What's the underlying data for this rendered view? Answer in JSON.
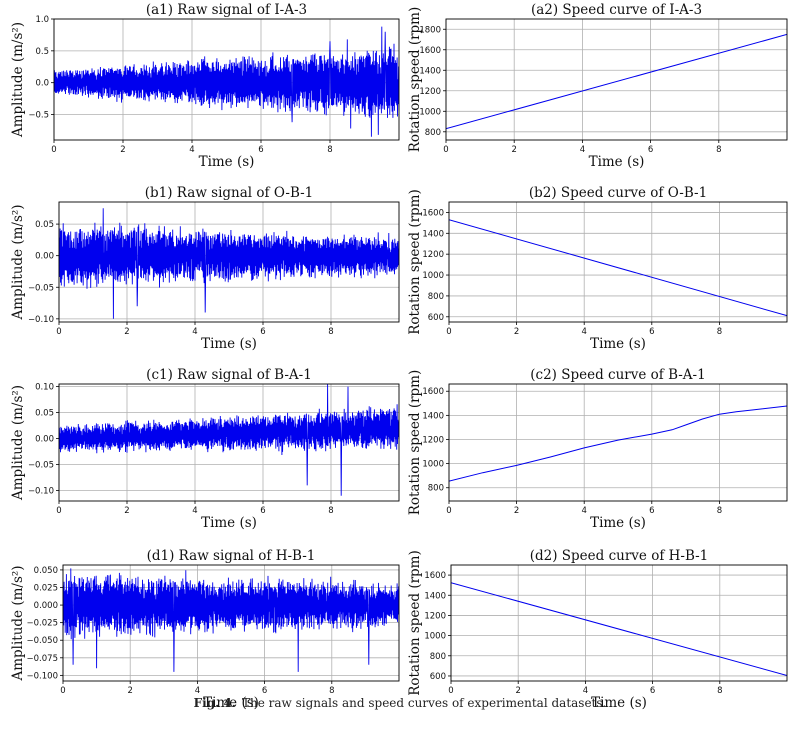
{
  "caption": {
    "label": "Fig. 4.",
    "text": "The raw signals and speed curves of experimental datasets."
  },
  "chart_data": [
    {
      "type": "line",
      "title": "(a1) Raw signal of I-A-3",
      "xlabel": "Time (s)",
      "ylabel": "Amplitude (m/s²)",
      "xlim": [
        0,
        10
      ],
      "ylim": [
        -0.9,
        1.0
      ],
      "xticks": [
        0,
        2,
        4,
        6,
        8
      ],
      "yticks": [
        -0.5,
        0.0,
        0.5,
        1.0
      ],
      "ytick_labels": [
        "−0.5",
        "0.0",
        "0.5",
        "1.0"
      ],
      "grid": true,
      "series": [
        {
          "color": "#0000ee",
          "signal": "noisy vibration, amplitude envelope growing with time",
          "envelope_start": 0.2,
          "envelope_end": 0.55,
          "peaks": [
            {
              "x": 6.9,
              "y": -0.62
            },
            {
              "x": 8.0,
              "y": 0.65
            },
            {
              "x": 8.5,
              "y": 0.68
            },
            {
              "x": 8.6,
              "y": -0.72
            },
            {
              "x": 9.2,
              "y": -0.85
            },
            {
              "x": 9.4,
              "y": -0.82
            },
            {
              "x": 9.5,
              "y": 0.88
            },
            {
              "x": 9.6,
              "y": 0.8
            }
          ]
        }
      ]
    },
    {
      "type": "line",
      "title": "(a2) Speed curve of I-A-3",
      "xlabel": "Time (s)",
      "ylabel": "Rotation speed (rpm)",
      "xlim": [
        0,
        10
      ],
      "ylim": [
        720,
        1900
      ],
      "xticks": [
        0,
        2,
        4,
        6,
        8
      ],
      "yticks": [
        800,
        1000,
        1200,
        1400,
        1600,
        1800
      ],
      "grid": true,
      "series": [
        {
          "color": "#0000ee",
          "x": [
            0,
            10
          ],
          "y": [
            830,
            1750
          ]
        }
      ]
    },
    {
      "type": "line",
      "title": "(b1) Raw signal of O-B-1",
      "xlabel": "Time (s)",
      "ylabel": "Amplitude (m/s²)",
      "xlim": [
        0,
        10
      ],
      "ylim": [
        -0.105,
        0.085
      ],
      "xticks": [
        0,
        2,
        4,
        6,
        8
      ],
      "yticks": [
        -0.1,
        -0.05,
        0.0,
        0.05
      ],
      "ytick_labels": [
        "−0.10",
        "−0.05",
        "0.00",
        "0.05"
      ],
      "grid": true,
      "series": [
        {
          "color": "#0000ee",
          "signal": "noisy vibration, amplitude envelope decaying with time",
          "envelope_start": 0.05,
          "envelope_end": 0.028,
          "peaks": [
            {
              "x": 1.3,
              "y": 0.075
            },
            {
              "x": 1.6,
              "y": -0.1
            },
            {
              "x": 2.3,
              "y": -0.08
            },
            {
              "x": 4.3,
              "y": -0.09
            }
          ]
        }
      ]
    },
    {
      "type": "line",
      "title": "(b2) Speed curve of O-B-1",
      "xlabel": "Time (s)",
      "ylabel": "Rotation speed (rpm)",
      "xlim": [
        0,
        10
      ],
      "ylim": [
        550,
        1700
      ],
      "xticks": [
        0,
        2,
        4,
        6,
        8
      ],
      "yticks": [
        600,
        800,
        1000,
        1200,
        1400,
        1600
      ],
      "grid": true,
      "series": [
        {
          "color": "#0000ee",
          "x": [
            0,
            10
          ],
          "y": [
            1530,
            610
          ]
        }
      ]
    },
    {
      "type": "line",
      "title": "(c1) Raw signal of B-A-1",
      "xlabel": "Time (s)",
      "ylabel": "Amplitude (m/s²)",
      "xlim": [
        0,
        10
      ],
      "ylim": [
        -0.12,
        0.105
      ],
      "xticks": [
        0,
        2,
        4,
        6,
        8
      ],
      "yticks": [
        -0.1,
        -0.05,
        0.0,
        0.05,
        0.1
      ],
      "ytick_labels": [
        "−0.10",
        "−0.05",
        "0.00",
        "0.05",
        "0.10"
      ],
      "grid": true,
      "series": [
        {
          "color": "#0000ee",
          "signal": "noisy vibration with slowly rising offset and growing envelope",
          "envelope_start": 0.025,
          "envelope_end": 0.04,
          "offset_start": 0.0,
          "offset_end": 0.02,
          "peaks": [
            {
              "x": 7.9,
              "y": 0.105
            },
            {
              "x": 7.3,
              "y": -0.09
            },
            {
              "x": 8.5,
              "y": 0.1
            },
            {
              "x": 8.3,
              "y": -0.11
            }
          ]
        }
      ]
    },
    {
      "type": "line",
      "title": "(c2) Speed curve of B-A-1",
      "xlabel": "Time (s)",
      "ylabel": "Rotation speed (rpm)",
      "xlim": [
        0,
        10
      ],
      "ylim": [
        690,
        1660
      ],
      "xticks": [
        0,
        2,
        4,
        6,
        8
      ],
      "yticks": [
        800,
        1000,
        1200,
        1400,
        1600
      ],
      "grid": true,
      "series": [
        {
          "color": "#0000ee",
          "x": [
            0,
            1,
            2,
            3,
            4,
            5,
            6,
            6.6,
            7,
            7.5,
            8,
            8.5,
            9,
            10
          ],
          "y": [
            855,
            925,
            985,
            1055,
            1130,
            1195,
            1245,
            1280,
            1320,
            1370,
            1410,
            1430,
            1445,
            1478
          ]
        }
      ]
    },
    {
      "type": "line",
      "title": "(d1) Raw signal of H-B-1",
      "xlabel": "Time (s)",
      "ylabel": "Amplitude (m/s²)",
      "xlim": [
        0,
        10
      ],
      "ylim": [
        -0.108,
        0.057
      ],
      "xticks": [
        0,
        2,
        4,
        6,
        8
      ],
      "yticks": [
        -0.1,
        -0.075,
        -0.05,
        -0.025,
        0.0,
        0.025,
        0.05
      ],
      "ytick_labels": [
        "−0.100",
        "−0.075",
        "−0.050",
        "−0.025",
        "0.000",
        "0.025",
        "0.050"
      ],
      "grid": true,
      "series": [
        {
          "color": "#0000ee",
          "signal": "noisy vibration, amplitude envelope slowly decaying",
          "envelope_start": 0.045,
          "envelope_end": 0.03,
          "peaks": [
            {
              "x": 0.3,
              "y": -0.085
            },
            {
              "x": 1.0,
              "y": -0.09
            },
            {
              "x": 3.3,
              "y": -0.095
            },
            {
              "x": 7.0,
              "y": -0.095
            },
            {
              "x": 9.1,
              "y": -0.085
            }
          ]
        }
      ]
    },
    {
      "type": "line",
      "title": "(d2) Speed curve of H-B-1",
      "xlabel": "Time (s)",
      "ylabel": "Rotation speed (rpm)",
      "xlim": [
        0,
        10
      ],
      "ylim": [
        550,
        1700
      ],
      "xticks": [
        0,
        2,
        4,
        6,
        8
      ],
      "yticks": [
        600,
        800,
        1000,
        1200,
        1400,
        1600
      ],
      "grid": true,
      "series": [
        {
          "color": "#0000ee",
          "x": [
            0,
            10
          ],
          "y": [
            1525,
            605
          ]
        }
      ]
    }
  ]
}
